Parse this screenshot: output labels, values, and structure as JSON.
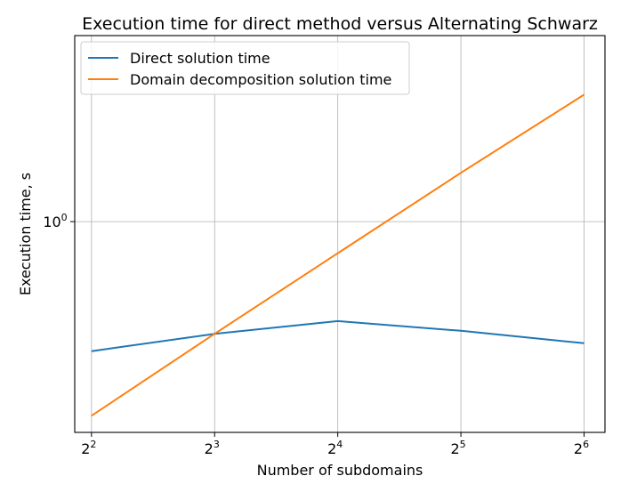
{
  "chart_data": {
    "type": "line",
    "title": "Execution time for direct method versus Alternating Schwarz",
    "xlabel": "Number of subdomains",
    "ylabel": "Execution time, s",
    "x_scale": "log2",
    "y_scale": "log10",
    "x": [
      4,
      8,
      16,
      32,
      64
    ],
    "x_ticks": [
      {
        "value": 4,
        "base": "2",
        "exp": "2"
      },
      {
        "value": 8,
        "base": "2",
        "exp": "3"
      },
      {
        "value": 16,
        "base": "2",
        "exp": "4"
      },
      {
        "value": 32,
        "base": "2",
        "exp": "5"
      },
      {
        "value": 64,
        "base": "2",
        "exp": "6"
      }
    ],
    "y_ticks": [
      {
        "value": 1,
        "base": "10",
        "exp": "0"
      }
    ],
    "xlim": [
      3.64,
      72
    ],
    "ylim": [
      0.395,
      2.27
    ],
    "grid": true,
    "legend_position": "upper-left",
    "series": [
      {
        "name": "Direct solution time",
        "color": "#1f77b4",
        "values": [
          0.565,
          0.61,
          0.645,
          0.618,
          0.585
        ]
      },
      {
        "name": "Domain decomposition solution time",
        "color": "#ff7f0e",
        "values": [
          0.425,
          0.61,
          0.87,
          1.24,
          1.75
        ]
      }
    ]
  }
}
